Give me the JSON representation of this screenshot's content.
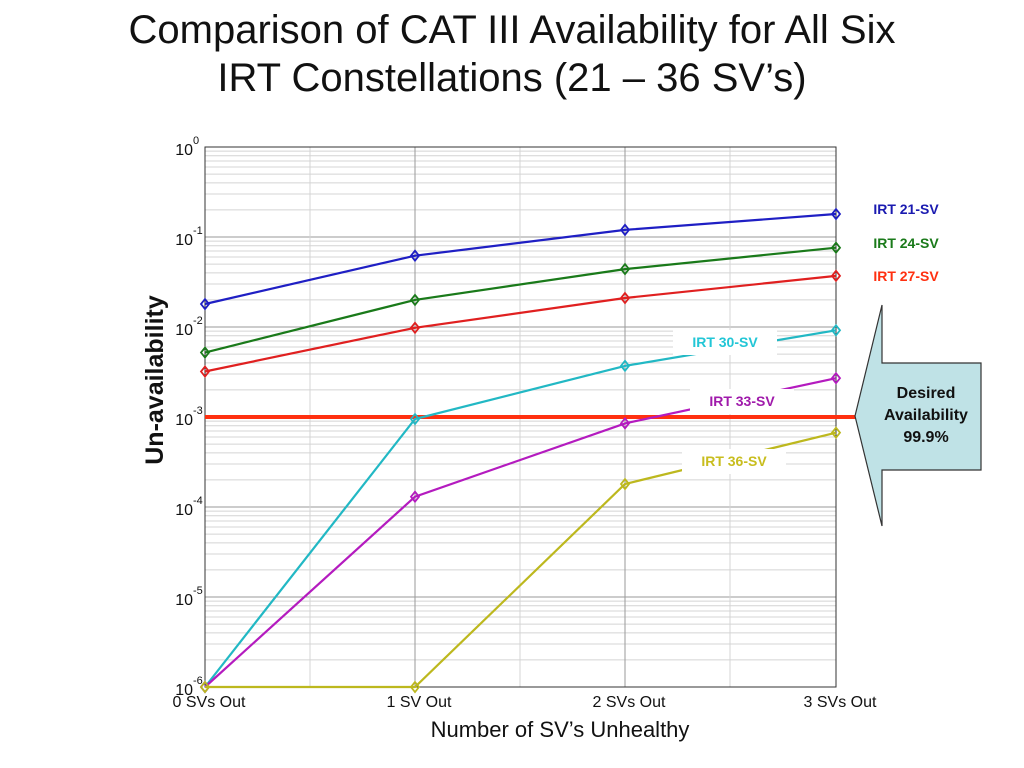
{
  "slide": {
    "title_line1": "Comparison of CAT III Availability for All Six",
    "title_line2": "IRT Constellations (21 – 36 SV’s)"
  },
  "chart_data": {
    "type": "line",
    "title": "",
    "xlabel": "Number of SV’s Unhealthy",
    "ylabel": "Un-availability",
    "y_scale": "log",
    "ylim": [
      1e-06,
      1
    ],
    "y_ticks": [
      {
        "base": "10",
        "exp": "0"
      },
      {
        "base": "10",
        "exp": "-1"
      },
      {
        "base": "10",
        "exp": "-2"
      },
      {
        "base": "10",
        "exp": "-3"
      },
      {
        "base": "10",
        "exp": "-4"
      },
      {
        "base": "10",
        "exp": "-5"
      },
      {
        "base": "10",
        "exp": "-6"
      }
    ],
    "categories": [
      "0 SVs Out",
      "1 SV Out",
      "2 SVs Out",
      "3 SVs Out"
    ],
    "grid": true,
    "series": [
      {
        "name": "IRT 21-SV",
        "color": "#1f1fc4",
        "label_boxed": false,
        "values": [
          0.018,
          0.062,
          0.12,
          0.18
        ]
      },
      {
        "name": "IRT 24-SV",
        "color": "#1a7a1a",
        "label_boxed": false,
        "values": [
          0.0052,
          0.02,
          0.044,
          0.076
        ]
      },
      {
        "name": "IRT 27-SV",
        "color": "#e02020",
        "label_boxed": false,
        "values": [
          0.0032,
          0.0098,
          0.021,
          0.037
        ]
      },
      {
        "name": "IRT 30-SV",
        "color": "#22b8c4",
        "label_boxed": true,
        "values": [
          1e-06,
          0.00095,
          0.0037,
          0.0092
        ]
      },
      {
        "name": "IRT 33-SV",
        "color": "#b41bbf",
        "label_boxed": true,
        "values": [
          1e-06,
          0.00013,
          0.00085,
          0.0027
        ]
      },
      {
        "name": "IRT 36-SV",
        "color": "#bdb81e",
        "label_boxed": true,
        "values": [
          1e-06,
          1e-06,
          0.00018,
          0.00067
        ]
      }
    ],
    "reference_line": {
      "value": 0.001,
      "color": "#ff3010"
    },
    "callout": {
      "lines": [
        "Desired",
        "Availability",
        "99.9%"
      ],
      "fill": "#bfe2e6"
    },
    "label_colors": {
      "IRT 21-SV": "#1a1ab0",
      "IRT 24-SV": "#1a7a1a",
      "IRT 27-SV": "#ff3010",
      "IRT 30-SV": "#22c6d6",
      "IRT 33-SV": "#a01aab",
      "IRT 36-SV": "#c8bd1e"
    }
  }
}
